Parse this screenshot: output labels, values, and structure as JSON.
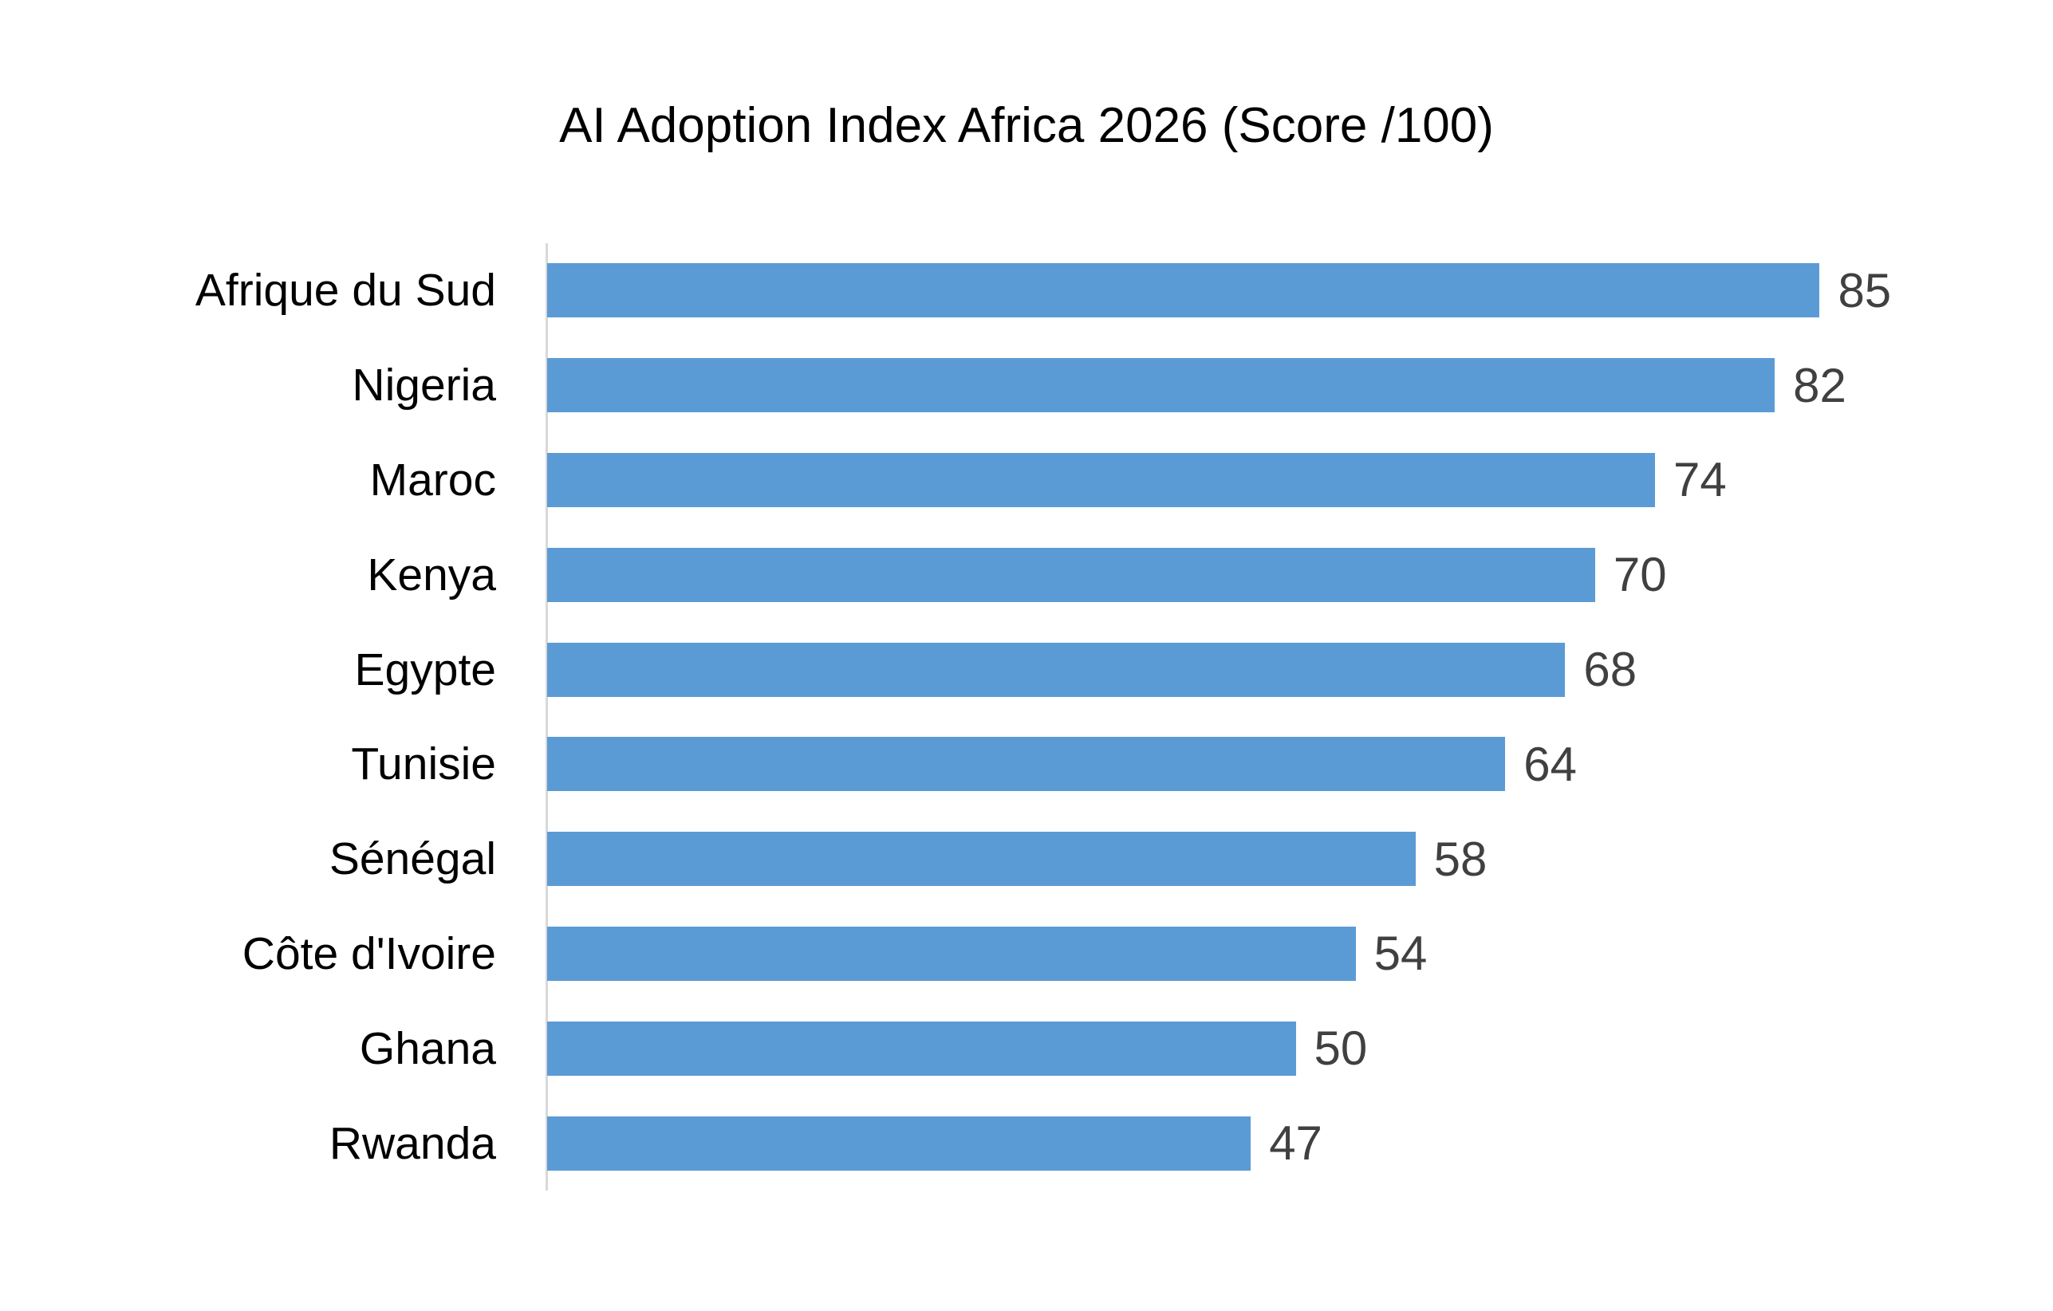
{
  "title": "AI Adoption Index Africa 2026 (Score /100)",
  "colors": {
    "bar": "#5B9BD5",
    "value_label": "#404040",
    "category_label": "#000000",
    "axis_line": "#D9D9D9",
    "background": "#FFFFFF"
  },
  "chart_data": {
    "type": "bar",
    "orientation": "horizontal",
    "title": "AI Adoption Index Africa 2026 (Score /100)",
    "categories": [
      "Afrique du Sud",
      "Nigeria",
      "Maroc",
      "Kenya",
      "Egypte",
      "Tunisie",
      "Sénégal",
      "Côte d'Ivoire",
      "Ghana",
      "Rwanda"
    ],
    "values": [
      85,
      82,
      74,
      70,
      68,
      64,
      58,
      54,
      50,
      47
    ],
    "xlabel": "",
    "ylabel": "",
    "xlim": [
      0,
      100
    ],
    "grid": false,
    "legend": false,
    "data_labels": true,
    "sort_order": "descending"
  }
}
